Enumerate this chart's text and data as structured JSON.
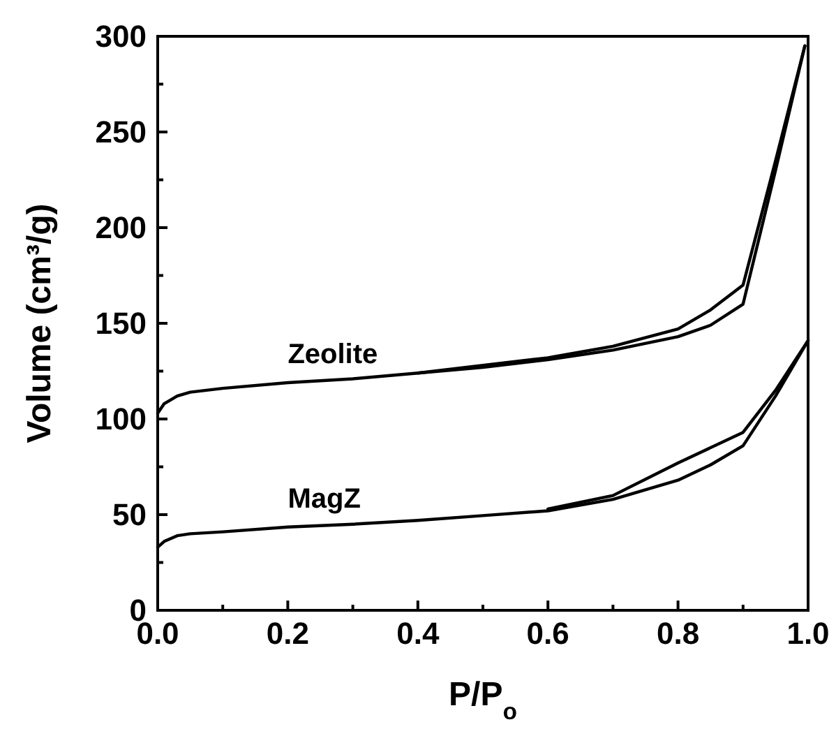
{
  "chart_data": {
    "type": "line",
    "xlabel": "P/P$_{o}$",
    "ylabel": "Volume (cm³/g)",
    "xlim": [
      0,
      1
    ],
    "ylim": [
      0,
      300
    ],
    "xticks": [
      {
        "value": 0,
        "label": "0.0"
      },
      {
        "value": 0.1,
        "label": null
      },
      {
        "value": 0.2,
        "label": "0.2"
      },
      {
        "value": 0.3,
        "label": null
      },
      {
        "value": 0.4,
        "label": "0.4"
      },
      {
        "value": 0.5,
        "label": null
      },
      {
        "value": 0.6,
        "label": "0.6"
      },
      {
        "value": 0.7,
        "label": null
      },
      {
        "value": 0.8,
        "label": "0.8"
      },
      {
        "value": 0.9,
        "label": null
      },
      {
        "value": 1,
        "label": "1.0"
      }
    ],
    "yticks": [
      0,
      {
        "value": 25,
        "label": null
      },
      50,
      {
        "value": 75,
        "label": null
      },
      100,
      {
        "value": 125,
        "label": null
      },
      150,
      {
        "value": 175,
        "label": null
      },
      200,
      {
        "value": 225,
        "label": null
      },
      250,
      {
        "value": 275,
        "label": null
      },
      300
    ],
    "grid": false,
    "marker": "none",
    "line_style": "solid",
    "series": [
      {
        "name": "Zeolite",
        "color": "#000000",
        "x": [
          0,
          0.01,
          0.03,
          0.05,
          0.1,
          0.2,
          0.3,
          0.4,
          0.5,
          0.6,
          0.7,
          0.8,
          0.85,
          0.9,
          0.95,
          0.995
        ],
        "values": [
          103,
          108,
          112,
          114,
          116,
          119,
          121,
          124,
          127,
          131,
          136,
          143,
          149,
          160,
          230,
          295
        ]
      },
      {
        "color": "#000000",
        "x": [
          0.995,
          0.95,
          0.9,
          0.85,
          0.8,
          0.7,
          0.6,
          0.5,
          0.4
        ],
        "values": [
          295,
          235,
          170,
          157,
          147,
          138,
          132,
          128,
          124
        ]
      },
      {
        "name": "MagZ",
        "color": "#000000",
        "x": [
          0,
          0.01,
          0.03,
          0.05,
          0.1,
          0.2,
          0.3,
          0.4,
          0.5,
          0.6,
          0.7,
          0.8,
          0.85,
          0.9,
          0.95,
          1
        ],
        "values": [
          33,
          36,
          39,
          40,
          41,
          43.5,
          45,
          47,
          49.5,
          52,
          58,
          68,
          76,
          86,
          112,
          141
        ]
      },
      {
        "color": "#000000",
        "x": [
          1,
          0.95,
          0.9,
          0.8,
          0.7,
          0.6
        ],
        "values": [
          141,
          115,
          93,
          77,
          60,
          53
        ]
      }
    ]
  }
}
